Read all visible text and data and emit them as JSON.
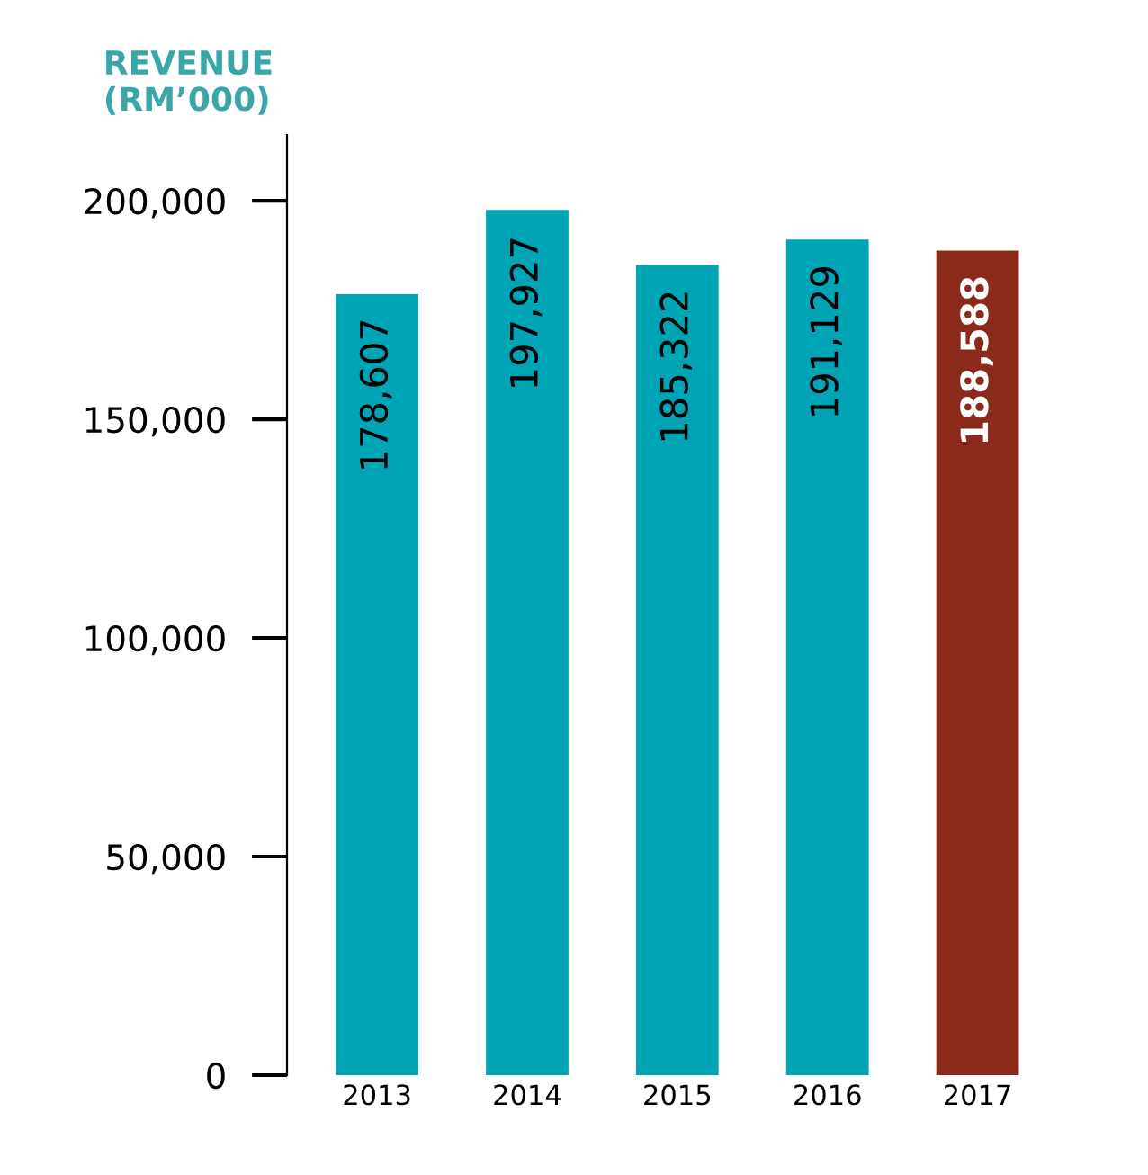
{
  "chart_data": {
    "type": "bar",
    "ylabel": "REVENUE\n(RM’000)",
    "categories": [
      "2013",
      "2014",
      "2015",
      "2016",
      "2017"
    ],
    "values": [
      178607,
      197927,
      185322,
      191129,
      188588
    ],
    "colors": [
      "#00a5b5",
      "#00a5b5",
      "#00a5b5",
      "#00a5b5",
      "#8b2a1a"
    ],
    "ylim": [
      0,
      215000
    ],
    "yticks": [
      {
        "value": 0,
        "label": "0"
      },
      {
        "value": 50000,
        "label": "50,000"
      },
      {
        "value": 100000,
        "label": "100,000"
      },
      {
        "value": 150000,
        "label": "150,000"
      },
      {
        "value": 200000,
        "label": "200,000"
      }
    ],
    "value_labels": [
      "178,607",
      "197,927",
      "185,322",
      "191,129",
      "188,588"
    ],
    "grid": false,
    "legend": false
  }
}
